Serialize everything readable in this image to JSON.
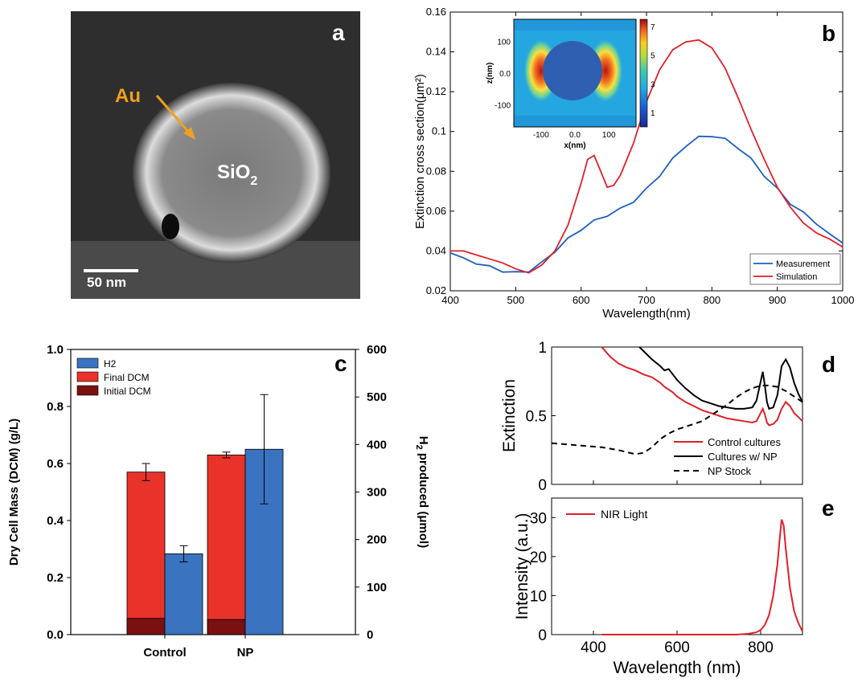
{
  "panels": {
    "a": {
      "letter": "a",
      "labels": {
        "au": "Au",
        "core": "SiO",
        "core_sub": "2",
        "scalebar": "50 nm"
      }
    },
    "b": {
      "letter": "b"
    },
    "c": {
      "letter": "c"
    },
    "d": {
      "letter": "d"
    },
    "e": {
      "letter": "e"
    }
  },
  "colors": {
    "measurement": "#1f5fbf",
    "simulation": "#e0202a",
    "h2": "#3a73c0",
    "final_dcm": "#e8322a",
    "initial_dcm": "#7a1010",
    "control_cultures": "#e0202a",
    "cultures_np": "#000000",
    "np_stock": "#000000",
    "nir_light": "#e0202a",
    "em_bg": "#2a2a2a",
    "au_label": "#f0a020"
  },
  "chart_data": [
    {
      "id": "b",
      "type": "line",
      "title": "",
      "xlabel": "Wavelength(nm)",
      "ylabel": "Extinction cross section(μm²)",
      "xlim": [
        400,
        1000
      ],
      "ylim": [
        0.02,
        0.16
      ],
      "xticks": [
        400,
        500,
        600,
        700,
        800,
        900,
        1000
      ],
      "yticks": [
        0.02,
        0.04,
        0.06,
        0.08,
        0.1,
        0.12,
        0.14,
        0.16
      ],
      "ytick_labels": [
        "0.02",
        "0.04",
        "0.06",
        "0.08",
        "0.1",
        "0.12",
        "0.14",
        "0.16"
      ],
      "legend_position": "bottom-right",
      "series": [
        {
          "name": "Measurement",
          "x": [
            400,
            420,
            440,
            460,
            480,
            500,
            520,
            540,
            560,
            580,
            600,
            620,
            640,
            660,
            680,
            700,
            720,
            740,
            760,
            780,
            800,
            820,
            840,
            860,
            880,
            900,
            920,
            940,
            960,
            980,
            1000
          ],
          "y": [
            0.039,
            0.036,
            0.034,
            0.032,
            0.03,
            0.029,
            0.03,
            0.034,
            0.04,
            0.046,
            0.051,
            0.055,
            0.058,
            0.061,
            0.065,
            0.071,
            0.078,
            0.086,
            0.093,
            0.097,
            0.098,
            0.096,
            0.092,
            0.086,
            0.078,
            0.071,
            0.064,
            0.059,
            0.054,
            0.048,
            0.044
          ]
        },
        {
          "name": "Simulation",
          "x": [
            400,
            420,
            440,
            460,
            480,
            500,
            520,
            540,
            560,
            580,
            600,
            610,
            620,
            630,
            640,
            650,
            660,
            680,
            700,
            720,
            740,
            760,
            780,
            800,
            820,
            840,
            860,
            880,
            900,
            920,
            940,
            960,
            980,
            1000
          ],
          "y": [
            0.04,
            0.04,
            0.038,
            0.036,
            0.034,
            0.031,
            0.029,
            0.033,
            0.04,
            0.053,
            0.074,
            0.086,
            0.088,
            0.08,
            0.072,
            0.073,
            0.078,
            0.094,
            0.115,
            0.131,
            0.141,
            0.145,
            0.146,
            0.142,
            0.132,
            0.117,
            0.101,
            0.086,
            0.072,
            0.062,
            0.054,
            0.049,
            0.046,
            0.042
          ]
        }
      ],
      "inset": {
        "type": "heatmap",
        "xlabel": "x(nm)",
        "ylabel": "z(nm)",
        "xlim": [
          -180,
          180
        ],
        "ylim": [
          -170,
          170
        ],
        "xticks": [
          -100,
          0.0,
          100
        ],
        "xtick_labels": [
          "-100",
          "0.0",
          "100"
        ],
        "yticks": [
          100,
          0.0,
          -100
        ],
        "ytick_labels": [
          "100",
          "0.0",
          "-100"
        ],
        "colorbar_ticks": [
          1,
          3,
          5,
          7
        ],
        "colorbar_range": [
          0,
          7.5
        ]
      }
    },
    {
      "id": "c",
      "type": "bar",
      "title": "",
      "categories": [
        "Control",
        "NP"
      ],
      "ylabel_left": "Dry Cell Mass (DCM) (g/L)",
      "ylabel_right": "H",
      "ylabel_right_sub": "2",
      "ylabel_right_rest": " produced (μmol)",
      "ylim_left": [
        0,
        1.0
      ],
      "ylim_right": [
        0,
        600
      ],
      "yticks_left": [
        "0.0",
        "0.2",
        "0.4",
        "0.6",
        "0.8",
        "1.0"
      ],
      "yticks_right": [
        "0",
        "100",
        "200",
        "300",
        "400",
        "500",
        "600"
      ],
      "legend_position": "top-left",
      "series": [
        {
          "name": "H2",
          "axis": "right",
          "values": [
            170,
            390
          ],
          "errors": [
            17,
            115
          ]
        },
        {
          "name": "Final DCM",
          "axis": "left",
          "values": [
            0.57,
            0.63
          ],
          "errors": [
            0.03,
            0.01
          ]
        },
        {
          "name": "Initial DCM",
          "axis": "left",
          "values": [
            0.057,
            0.053
          ]
        }
      ]
    },
    {
      "id": "d",
      "type": "line",
      "title": "",
      "xlabel": "",
      "ylabel": "Extinction",
      "xlim": [
        300,
        900
      ],
      "ylim": [
        0,
        1
      ],
      "yticks": [
        "0",
        "0.5",
        "1"
      ],
      "legend_position": "bottom-right",
      "series": [
        {
          "name": "Control cultures",
          "x": [
            420,
            440,
            460,
            480,
            500,
            520,
            540,
            560,
            570,
            580,
            590,
            600,
            620,
            640,
            660,
            680,
            700,
            720,
            740,
            760,
            780,
            790,
            800,
            805,
            810,
            815,
            820,
            830,
            840,
            850,
            860,
            870,
            880,
            890,
            900
          ],
          "y": [
            1.0,
            0.93,
            0.88,
            0.85,
            0.83,
            0.8,
            0.78,
            0.74,
            0.71,
            0.69,
            0.67,
            0.64,
            0.6,
            0.57,
            0.54,
            0.52,
            0.5,
            0.48,
            0.47,
            0.46,
            0.45,
            0.46,
            0.52,
            0.55,
            0.51,
            0.45,
            0.43,
            0.44,
            0.47,
            0.55,
            0.6,
            0.57,
            0.52,
            0.49,
            0.46
          ]
        },
        {
          "name": "Cultures w/ NP",
          "x": [
            510,
            520,
            540,
            560,
            570,
            580,
            590,
            600,
            620,
            640,
            660,
            680,
            700,
            720,
            740,
            760,
            780,
            790,
            800,
            805,
            810,
            815,
            820,
            830,
            840,
            850,
            860,
            870,
            880,
            890,
            900
          ],
          "y": [
            1.0,
            0.97,
            0.91,
            0.86,
            0.83,
            0.84,
            0.8,
            0.76,
            0.7,
            0.65,
            0.61,
            0.59,
            0.57,
            0.56,
            0.55,
            0.55,
            0.56,
            0.61,
            0.75,
            0.82,
            0.72,
            0.6,
            0.55,
            0.56,
            0.65,
            0.86,
            0.91,
            0.85,
            0.74,
            0.66,
            0.6
          ]
        },
        {
          "name": "NP Stock",
          "dashed": true,
          "x": [
            300,
            340,
            380,
            420,
            460,
            500,
            520,
            540,
            560,
            580,
            600,
            620,
            640,
            660,
            680,
            700,
            720,
            740,
            760,
            780,
            800,
            820,
            840,
            860,
            880,
            900
          ],
          "y": [
            0.3,
            0.29,
            0.28,
            0.27,
            0.25,
            0.22,
            0.23,
            0.27,
            0.33,
            0.37,
            0.4,
            0.42,
            0.44,
            0.46,
            0.5,
            0.54,
            0.58,
            0.63,
            0.67,
            0.7,
            0.72,
            0.72,
            0.71,
            0.68,
            0.64,
            0.6
          ]
        }
      ]
    },
    {
      "id": "e",
      "type": "line",
      "title": "",
      "xlabel": "Wavelength (nm)",
      "ylabel": "Intensity (a.u.)",
      "xlim": [
        300,
        900
      ],
      "ylim": [
        0,
        35
      ],
      "xticks": [
        "400",
        "600",
        "800"
      ],
      "yticks": [
        "0",
        "10",
        "20",
        "30"
      ],
      "legend_position": "top-left",
      "series": [
        {
          "name": "NIR Light",
          "x": [
            420,
            600,
            740,
            770,
            790,
            800,
            810,
            820,
            830,
            840,
            845,
            850,
            855,
            860,
            870,
            880,
            890,
            900
          ],
          "y": [
            0,
            0,
            0,
            0.2,
            0.6,
            1.2,
            2.5,
            5,
            10,
            18,
            24,
            29.5,
            28,
            22,
            12,
            6,
            3,
            0.8
          ]
        }
      ]
    }
  ]
}
